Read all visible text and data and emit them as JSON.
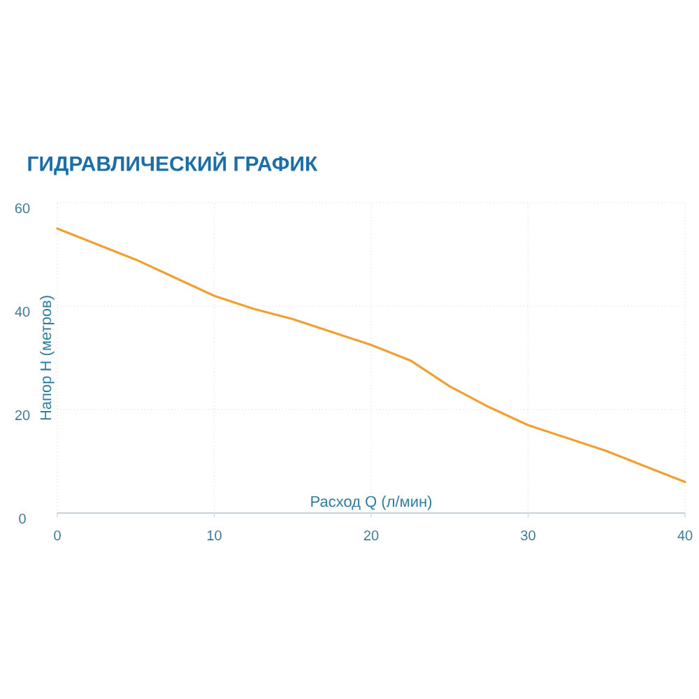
{
  "chart_data": {
    "type": "line",
    "title": "ГИДРАВЛИЧЕСКИЙ ГРАФИК",
    "xlabel": "Расход Q (л/мин)",
    "ylabel": "Напор Н (метров)",
    "x": [
      0,
      2.5,
      5,
      7.5,
      10,
      12.5,
      15,
      17.5,
      20,
      22.5,
      25,
      27.5,
      30,
      32.5,
      35,
      37.5,
      40
    ],
    "series": [
      {
        "color": "#f0a030",
        "values": [
          55,
          52,
          49,
          45.5,
          42,
          39.5,
          37.5,
          35,
          32.5,
          29.5,
          24.5,
          20.5,
          17,
          14.5,
          12,
          9,
          6
        ]
      }
    ],
    "xlim": [
      0,
      40
    ],
    "ylim": [
      0,
      60
    ],
    "xticks": [
      0,
      10,
      20,
      30,
      40
    ],
    "yticks": [
      0,
      20,
      40,
      60
    ],
    "grid": true
  }
}
